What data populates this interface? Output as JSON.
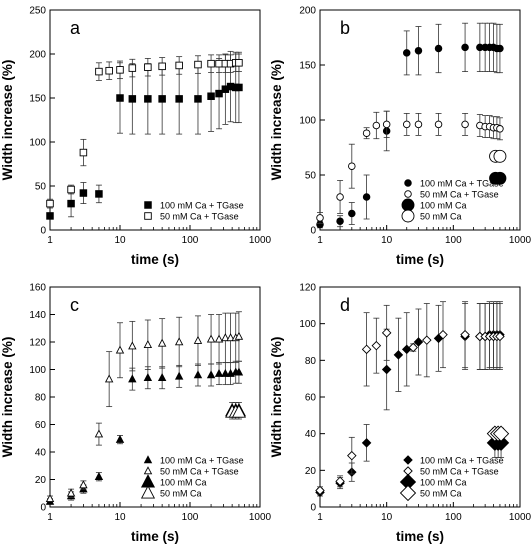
{
  "chart_data": [
    {
      "panel_label": "a",
      "type": "scatter",
      "xscale": "log",
      "xlim": [
        1,
        1000
      ],
      "ylim": [
        0,
        250
      ],
      "xticks": [
        1,
        10,
        100,
        1000
      ],
      "xtick_labels": [
        "1",
        "10",
        "100",
        "1000"
      ],
      "yticks": [
        0,
        50,
        100,
        150,
        200,
        250
      ],
      "xlabel": "time (s)",
      "ylabel": "Width increase (%)",
      "legend_position": "lower-right",
      "series": [
        {
          "name": "100 mM Ca + TGase",
          "marker": "square-filled",
          "x": [
            1,
            2,
            3,
            5,
            10,
            15,
            25,
            40,
            70,
            130,
            200,
            260,
            320,
            380,
            450,
            500
          ],
          "y": [
            16,
            30,
            42,
            41,
            150,
            149,
            149,
            149,
            149,
            149,
            152,
            155,
            160,
            163,
            162,
            162
          ],
          "err": [
            3,
            15,
            12,
            10,
            40,
            40,
            40,
            40,
            40,
            40,
            40,
            40,
            40,
            40,
            40,
            40
          ]
        },
        {
          "name": "50 mM Ca + TGase",
          "marker": "square-open",
          "x": [
            1,
            2,
            3,
            5,
            7,
            10,
            15,
            25,
            40,
            70,
            130,
            200,
            260,
            320,
            380,
            450,
            500
          ],
          "y": [
            30,
            46,
            88,
            180,
            181,
            182,
            184,
            185,
            186,
            187,
            188,
            189,
            189,
            189,
            189,
            190,
            190
          ],
          "err": [
            5,
            5,
            15,
            10,
            10,
            10,
            10,
            10,
            10,
            10,
            10,
            10,
            10,
            10,
            10,
            10,
            10
          ]
        }
      ]
    },
    {
      "panel_label": "b",
      "type": "scatter",
      "xscale": "log",
      "xlim": [
        1,
        1000
      ],
      "ylim": [
        0,
        200
      ],
      "xticks": [
        1,
        10,
        100,
        1000
      ],
      "xtick_labels": [
        "1",
        "10",
        "100",
        "1000"
      ],
      "yticks": [
        0,
        50,
        100,
        150,
        200
      ],
      "xlabel": "time (s)",
      "ylabel": "Width increase (%)",
      "legend_position": "lower-right",
      "series": [
        {
          "name": "100 mM Ca + TGase",
          "marker": "circle-filled-small",
          "x": [
            1,
            2,
            3,
            5,
            10,
            20,
            30,
            60,
            150,
            250,
            300,
            350,
            400,
            450,
            500
          ],
          "y": [
            5,
            8,
            15,
            30,
            90,
            161,
            163,
            165,
            166,
            166,
            166,
            166,
            166,
            165,
            165
          ],
          "err": [
            3,
            5,
            10,
            20,
            18,
            20,
            22,
            22,
            22,
            22,
            22,
            22,
            22,
            22,
            22
          ]
        },
        {
          "name": "50 mM Ca + TGase",
          "marker": "circle-open-small",
          "x": [
            1,
            2,
            3,
            5,
            7,
            10,
            20,
            30,
            60,
            150,
            250,
            300,
            350,
            400,
            450,
            500
          ],
          "y": [
            11,
            30,
            58,
            88,
            95,
            96,
            96,
            96,
            96,
            96,
            95,
            94,
            94,
            93,
            93,
            92
          ],
          "err": [
            5,
            15,
            20,
            5,
            12,
            12,
            10,
            10,
            10,
            10,
            10,
            10,
            10,
            10,
            10,
            10
          ]
        },
        {
          "name": "100 mM Ca",
          "marker": "circle-filled-large",
          "x": [
            430,
            500
          ],
          "y": [
            47,
            47
          ],
          "err": [
            0,
            0
          ]
        },
        {
          "name": "50 mM Ca",
          "marker": "circle-open-large",
          "x": [
            430,
            500
          ],
          "y": [
            67,
            67
          ],
          "err": [
            0,
            0
          ]
        }
      ]
    },
    {
      "panel_label": "c",
      "type": "scatter",
      "xscale": "log",
      "xlim": [
        1,
        1000
      ],
      "ylim": [
        0,
        160
      ],
      "xticks": [
        1,
        10,
        100,
        1000
      ],
      "xtick_labels": [
        "1",
        "10",
        "100",
        "1000"
      ],
      "yticks": [
        0,
        20,
        40,
        60,
        80,
        100,
        120,
        140,
        160
      ],
      "xlabel": "time (s)",
      "ylabel": "Width increase (%)",
      "legend_position": "lower-right",
      "series": [
        {
          "name": "100 mM Ca + TGase",
          "marker": "triangle-filled-small",
          "x": [
            1,
            2,
            3,
            5,
            10,
            15,
            25,
            40,
            70,
            130,
            200,
            260,
            320,
            380,
            450,
            500
          ],
          "y": [
            4,
            8,
            13,
            22,
            49,
            93,
            94,
            94,
            95,
            96,
            96,
            97,
            97,
            97,
            98,
            98
          ],
          "err": [
            2,
            3,
            3,
            3,
            3,
            8,
            8,
            8,
            8,
            8,
            8,
            8,
            8,
            8,
            8,
            8
          ]
        },
        {
          "name": "50 mM Ca + TGase",
          "marker": "triangle-open-small",
          "x": [
            1,
            2,
            3,
            5,
            7,
            10,
            15,
            25,
            40,
            70,
            130,
            200,
            260,
            320,
            380,
            450,
            500
          ],
          "y": [
            6,
            10,
            16,
            53,
            93,
            114,
            117,
            118,
            119,
            120,
            121,
            122,
            122,
            123,
            123,
            123,
            124
          ],
          "err": [
            2,
            3,
            3,
            8,
            20,
            20,
            18,
            18,
            18,
            18,
            18,
            18,
            18,
            18,
            18,
            18,
            18
          ]
        },
        {
          "name": "100 mM Ca",
          "marker": "triangle-filled-large",
          "x": [
            400,
            450,
            500
          ],
          "y": [
            70,
            70,
            70
          ],
          "err": [
            6,
            6,
            6
          ]
        },
        {
          "name": "50 mM Ca",
          "marker": "triangle-open-large",
          "x": [
            400,
            450,
            500
          ],
          "y": [
            69,
            69,
            69
          ],
          "err": [
            0,
            0,
            0
          ]
        }
      ]
    },
    {
      "panel_label": "d",
      "type": "scatter",
      "xscale": "log",
      "xlim": [
        1,
        1000
      ],
      "ylim": [
        0,
        120
      ],
      "xticks": [
        1,
        10,
        100,
        1000
      ],
      "xtick_labels": [
        "1",
        "10",
        "100",
        "1000"
      ],
      "yticks": [
        0,
        20,
        40,
        60,
        80,
        100,
        120
      ],
      "xlabel": "time (s)",
      "ylabel": "Width increase (%)",
      "legend_position": "lower-right",
      "series": [
        {
          "name": "100 mM Ca + TGase",
          "marker": "diamond-filled-small",
          "x": [
            1,
            2,
            3,
            5,
            10,
            15,
            20,
            30,
            60,
            150,
            250,
            300,
            350,
            400,
            450,
            500
          ],
          "y": [
            8,
            13,
            19,
            35,
            75,
            83,
            86,
            90,
            92,
            93,
            93,
            93,
            94,
            94,
            94,
            94
          ],
          "err": [
            2,
            3,
            5,
            10,
            22,
            20,
            20,
            18,
            18,
            18,
            18,
            18,
            18,
            18,
            18,
            18
          ]
        },
        {
          "name": "50 mM Ca + TGase",
          "marker": "diamond-open-small",
          "x": [
            1,
            2,
            3,
            5,
            7,
            10,
            25,
            40,
            70,
            150,
            250,
            300,
            350,
            400,
            450,
            500
          ],
          "y": [
            9,
            14,
            28,
            86,
            88,
            95,
            87,
            91,
            94,
            94,
            93,
            93,
            93,
            93,
            93,
            93
          ],
          "err": [
            2,
            3,
            10,
            20,
            15,
            15,
            2,
            20,
            18,
            18,
            18,
            18,
            18,
            18,
            18,
            18
          ]
        },
        {
          "name": "100 mM Ca",
          "marker": "diamond-filled-large",
          "x": [
            420,
            470,
            520
          ],
          "y": [
            35,
            35,
            35
          ],
          "err": [
            8,
            8,
            8
          ]
        },
        {
          "name": "50 mM Ca",
          "marker": "diamond-open-large",
          "x": [
            420,
            470,
            520
          ],
          "y": [
            40,
            40,
            40
          ],
          "err": [
            0,
            0,
            0
          ]
        }
      ]
    }
  ]
}
